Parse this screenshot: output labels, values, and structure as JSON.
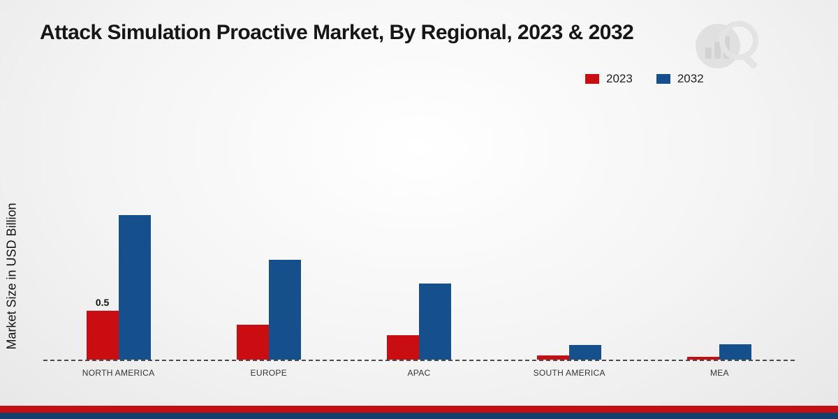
{
  "title": "Attack Simulation Proactive Market, By Regional, 2023 & 2032",
  "ylabel": "Market Size in USD Billion",
  "legend": [
    {
      "label": "2023",
      "color": "#c90d10"
    },
    {
      "label": "2032",
      "color": "#15508c"
    }
  ],
  "chart_data": {
    "type": "bar",
    "title": "Attack Simulation Proactive Market, By Regional, 2023 & 2032",
    "ylabel": "Market Size in USD Billion",
    "categories": [
      "NORTH AMERICA",
      "EUROPE",
      "APAC",
      "SOUTH AMERICA",
      "MEA"
    ],
    "series": [
      {
        "name": "2023",
        "color": "#c90d10",
        "values": [
          0.5,
          0.36,
          0.25,
          0.04,
          0.03
        ],
        "labels": [
          "0.5",
          "",
          "",
          "",
          ""
        ]
      },
      {
        "name": "2032",
        "color": "#15508c",
        "values": [
          1.48,
          1.02,
          0.78,
          0.15,
          0.16
        ],
        "labels": [
          "",
          "",
          "",
          "",
          ""
        ]
      }
    ],
    "ylim": [
      0,
      2
    ],
    "grid": false,
    "legend_position": "top-right",
    "baseline_style": "dashed"
  }
}
